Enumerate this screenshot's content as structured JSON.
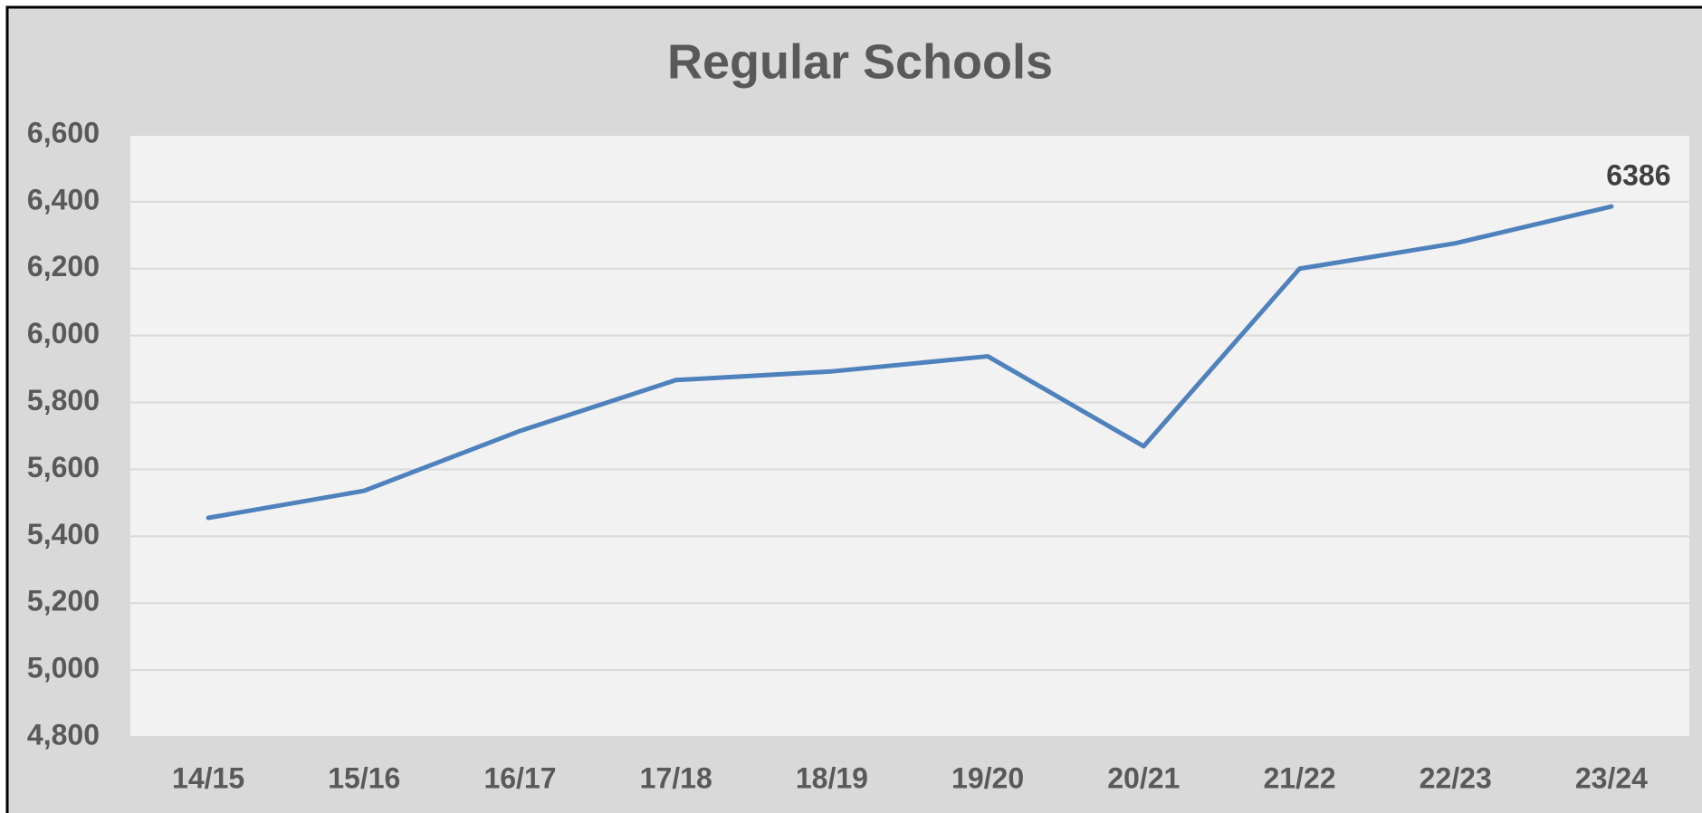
{
  "chart_data": {
    "type": "line",
    "title": "Regular Schools",
    "categories": [
      "14/15",
      "15/16",
      "16/17",
      "17/18",
      "18/19",
      "19/20",
      "20/21",
      "21/22",
      "22/23",
      "23/24"
    ],
    "series": [
      {
        "name": "Regular Schools",
        "color": "#4f81bd",
        "values": [
          5455,
          5536,
          5715,
          5867,
          5893,
          5938,
          5669,
          6200,
          6276,
          6386
        ]
      }
    ],
    "labeled_points": [
      9
    ],
    "ylim": [
      4800,
      6600
    ],
    "yticks": [
      {
        "value": 4800,
        "label": "4,800"
      },
      {
        "value": 5000,
        "label": "5,000"
      },
      {
        "value": 5200,
        "label": "5,200"
      },
      {
        "value": 5400,
        "label": "5,400"
      },
      {
        "value": 5600,
        "label": "5,600"
      },
      {
        "value": 5800,
        "label": "5,800"
      },
      {
        "value": 6000,
        "label": "6,000"
      },
      {
        "value": 6200,
        "label": "6,200"
      },
      {
        "value": 6400,
        "label": "6,400"
      },
      {
        "value": 6600,
        "label": "6,600"
      }
    ],
    "grid": true
  }
}
